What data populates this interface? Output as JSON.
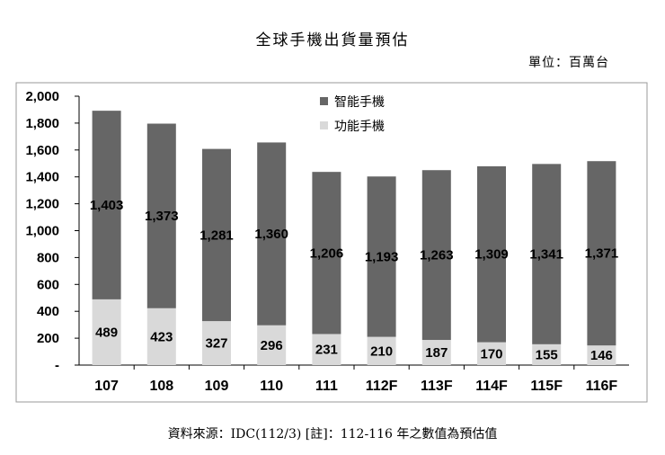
{
  "title": "全球手機出貨量預估",
  "unit_label": "單位：百萬台",
  "source_note": "資料來源：IDC(112/3)    [註]：112-116 年之數值為預估值",
  "colors": {
    "smart": "#666666",
    "feature": "#d9d9d9",
    "axis": "#000000",
    "frame": "#9a9a9a"
  },
  "chart_data": {
    "type": "bar",
    "stacked": true,
    "categories": [
      "107",
      "108",
      "109",
      "110",
      "111",
      "112F",
      "113F",
      "114F",
      "115F",
      "116F"
    ],
    "series": [
      {
        "name": "功能手機",
        "values": [
          489,
          423,
          327,
          296,
          231,
          210,
          187,
          170,
          155,
          146
        ]
      },
      {
        "name": "智能手機",
        "values": [
          1403,
          1373,
          1281,
          1360,
          1206,
          1193,
          1263,
          1309,
          1341,
          1371
        ]
      }
    ],
    "ylim": [
      0,
      2000
    ],
    "yticks": [
      0,
      200,
      400,
      600,
      800,
      1000,
      1200,
      1400,
      1600,
      1800,
      2000
    ],
    "ytick_labels": [
      "-",
      "200",
      "400",
      "600",
      "800",
      "1,000",
      "1,200",
      "1,400",
      "1,600",
      "1,800",
      "2,000"
    ],
    "data_labels": {
      "功能手機": [
        "489",
        "423",
        "327",
        "296",
        "231",
        "210",
        "187",
        "170",
        "155",
        "146"
      ],
      "智能手機": [
        "1,403",
        "1,373",
        "1,281",
        "1,360",
        "1,206",
        "1,193",
        "1,263",
        "1,309",
        "1,341",
        "1,371"
      ]
    },
    "legend": [
      "智能手機",
      "功能手機"
    ],
    "legend_position": "top-right",
    "grid": false
  }
}
